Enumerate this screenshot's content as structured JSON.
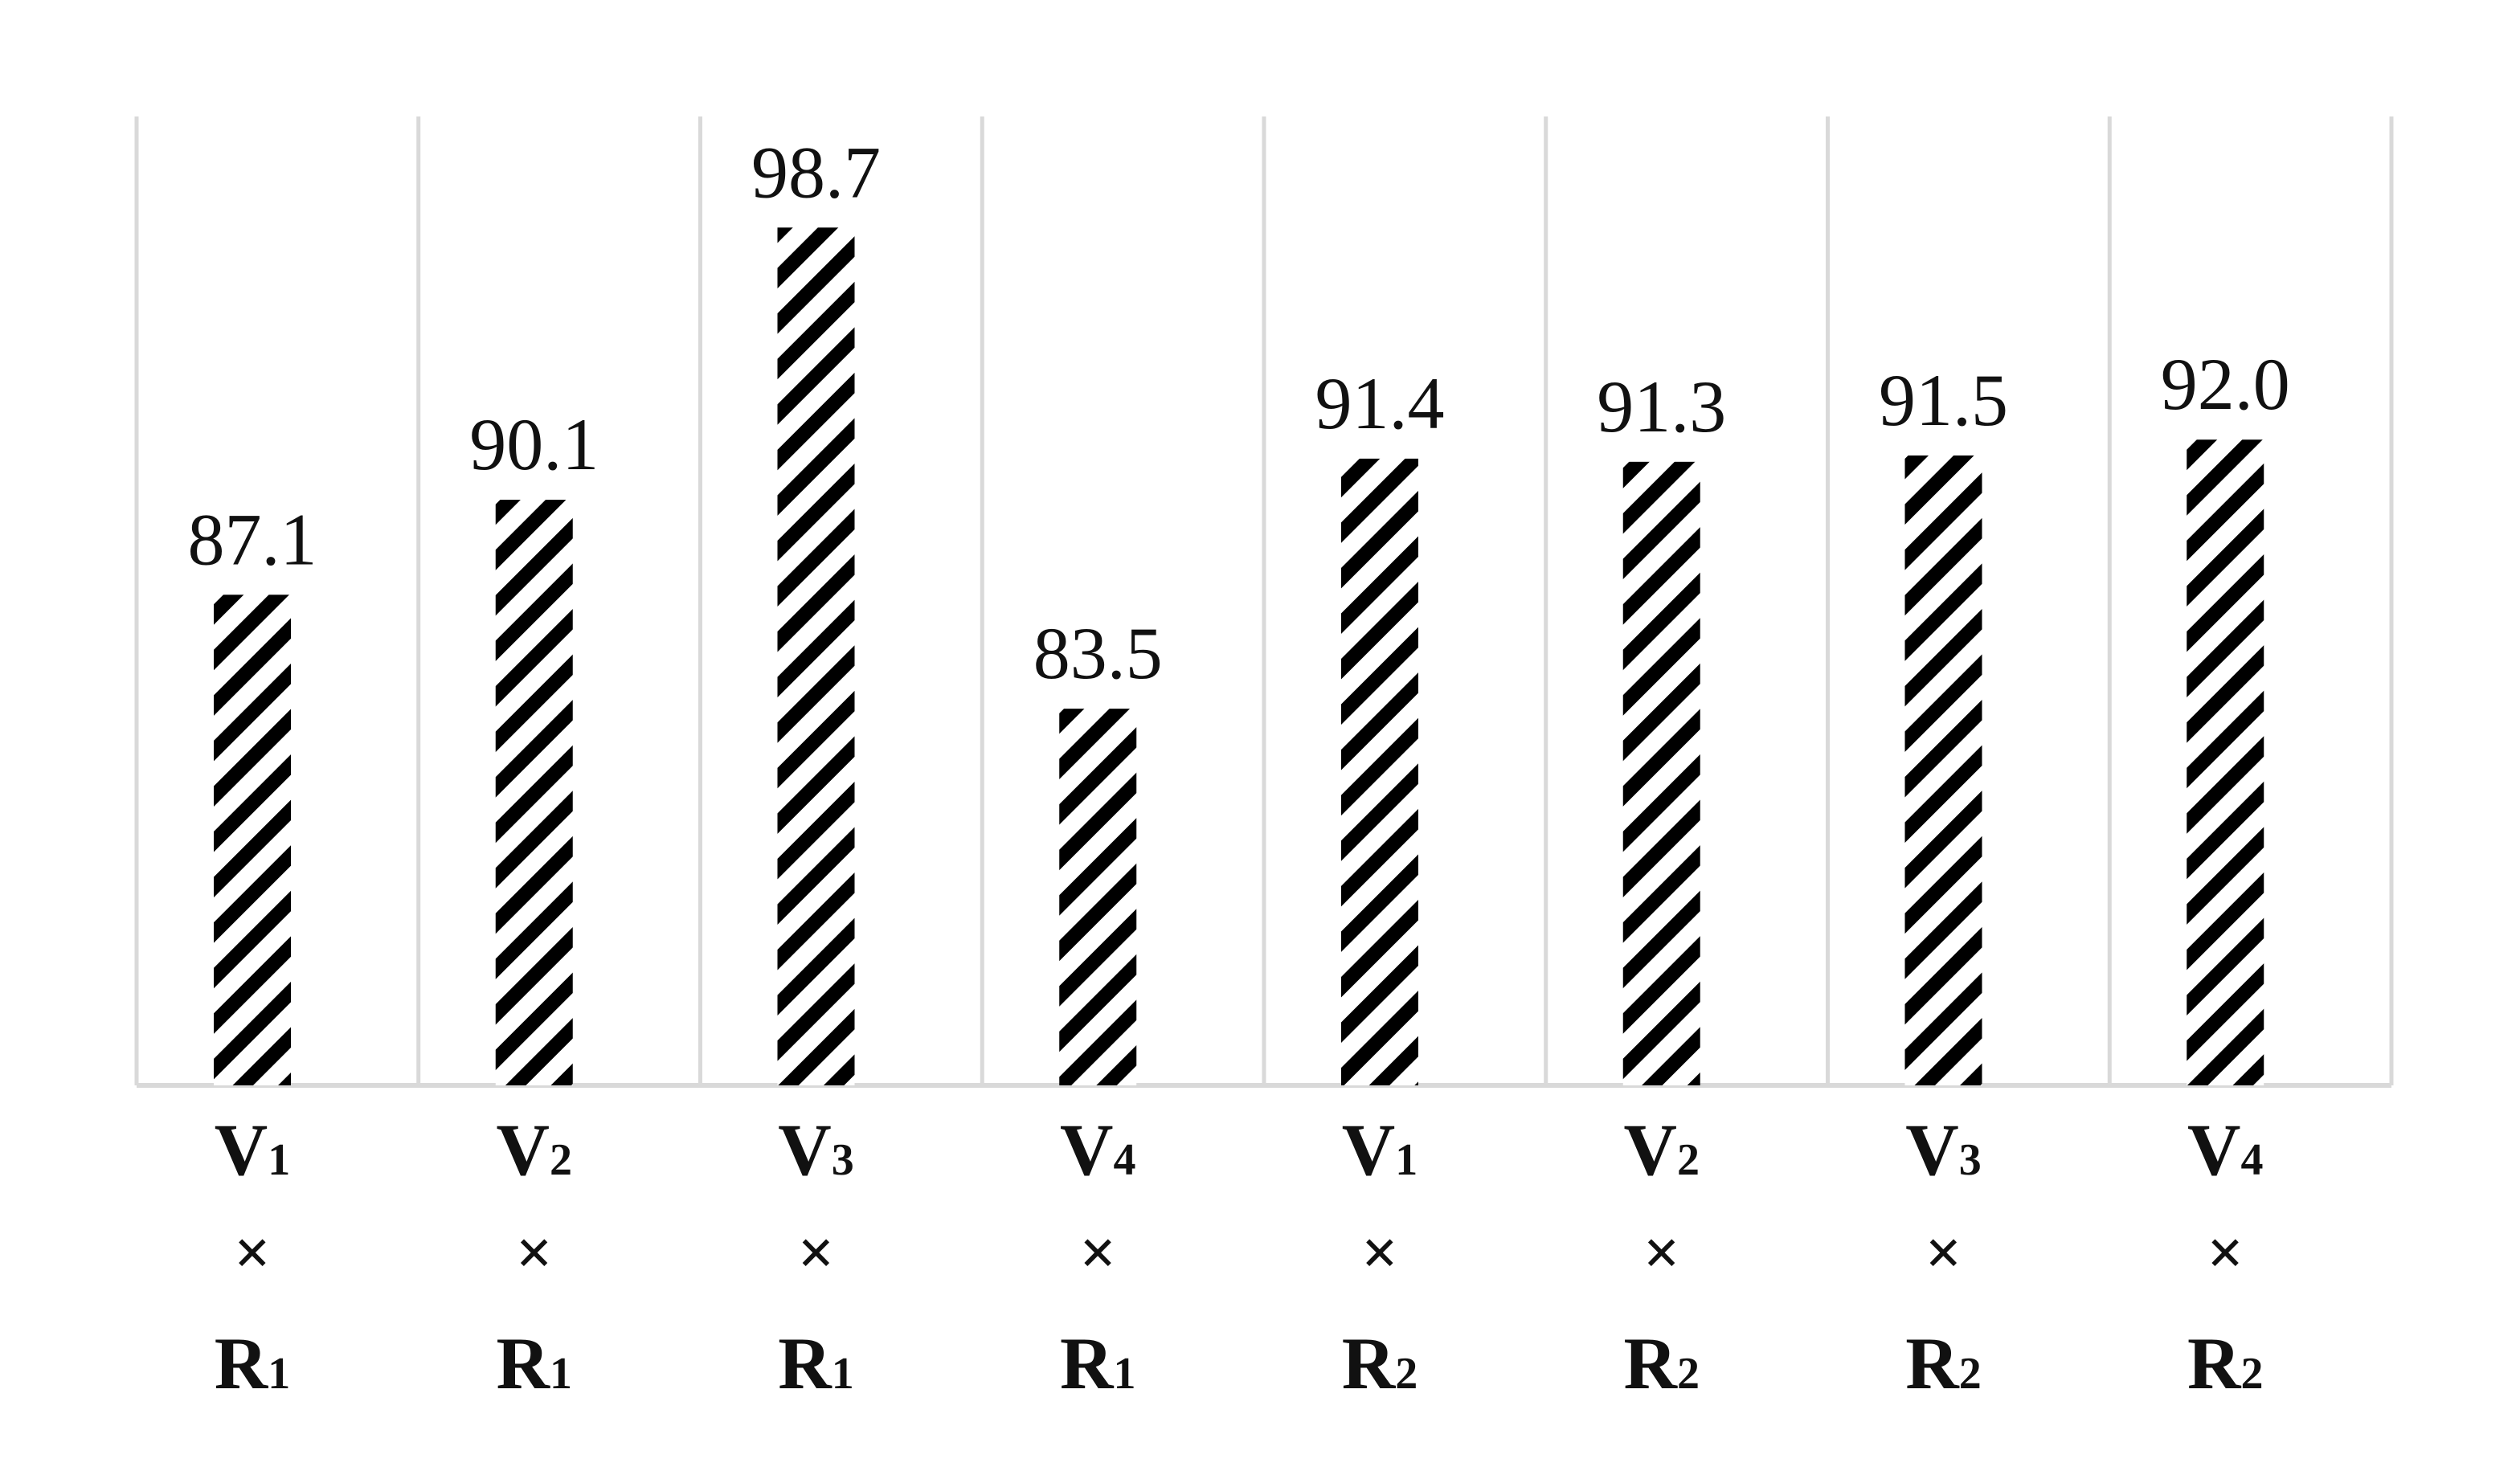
{
  "chart_data": {
    "type": "bar",
    "title": "",
    "xlabel": "",
    "ylabel": "",
    "categories": [
      {
        "top": "V",
        "top_sub": "1",
        "mid": "×",
        "bottom": "R",
        "bottom_sub": "1"
      },
      {
        "top": "V",
        "top_sub": "2",
        "mid": "×",
        "bottom": "R",
        "bottom_sub": "1"
      },
      {
        "top": "V",
        "top_sub": "3",
        "mid": "×",
        "bottom": "R",
        "bottom_sub": "1"
      },
      {
        "top": "V",
        "top_sub": "4",
        "mid": "×",
        "bottom": "R",
        "bottom_sub": "1"
      },
      {
        "top": "V",
        "top_sub": "1",
        "mid": "×",
        "bottom": "R",
        "bottom_sub": "2"
      },
      {
        "top": "V",
        "top_sub": "2",
        "mid": "×",
        "bottom": "R",
        "bottom_sub": "2"
      },
      {
        "top": "V",
        "top_sub": "3",
        "mid": "×",
        "bottom": "R",
        "bottom_sub": "2"
      },
      {
        "top": "V",
        "top_sub": "4",
        "mid": "×",
        "bottom": "R",
        "bottom_sub": "2"
      }
    ],
    "values": [
      87.1,
      90.1,
      98.7,
      83.5,
      91.4,
      91.3,
      91.5,
      92.0
    ],
    "data_labels": [
      "87.1",
      "90.1",
      "98.7",
      "83.5",
      "91.4",
      "91.3",
      "91.5",
      "92.0"
    ],
    "ylim": [
      71.6,
      100.7
    ],
    "grid": {
      "vertical_separators": true,
      "horizontal": false
    },
    "bar_pattern": "diagonal-hatch",
    "colors": {
      "bar_stripe": "#000000",
      "bar_background": "#ffffff",
      "grid": "#d9d9d9",
      "text": "#111111"
    }
  }
}
